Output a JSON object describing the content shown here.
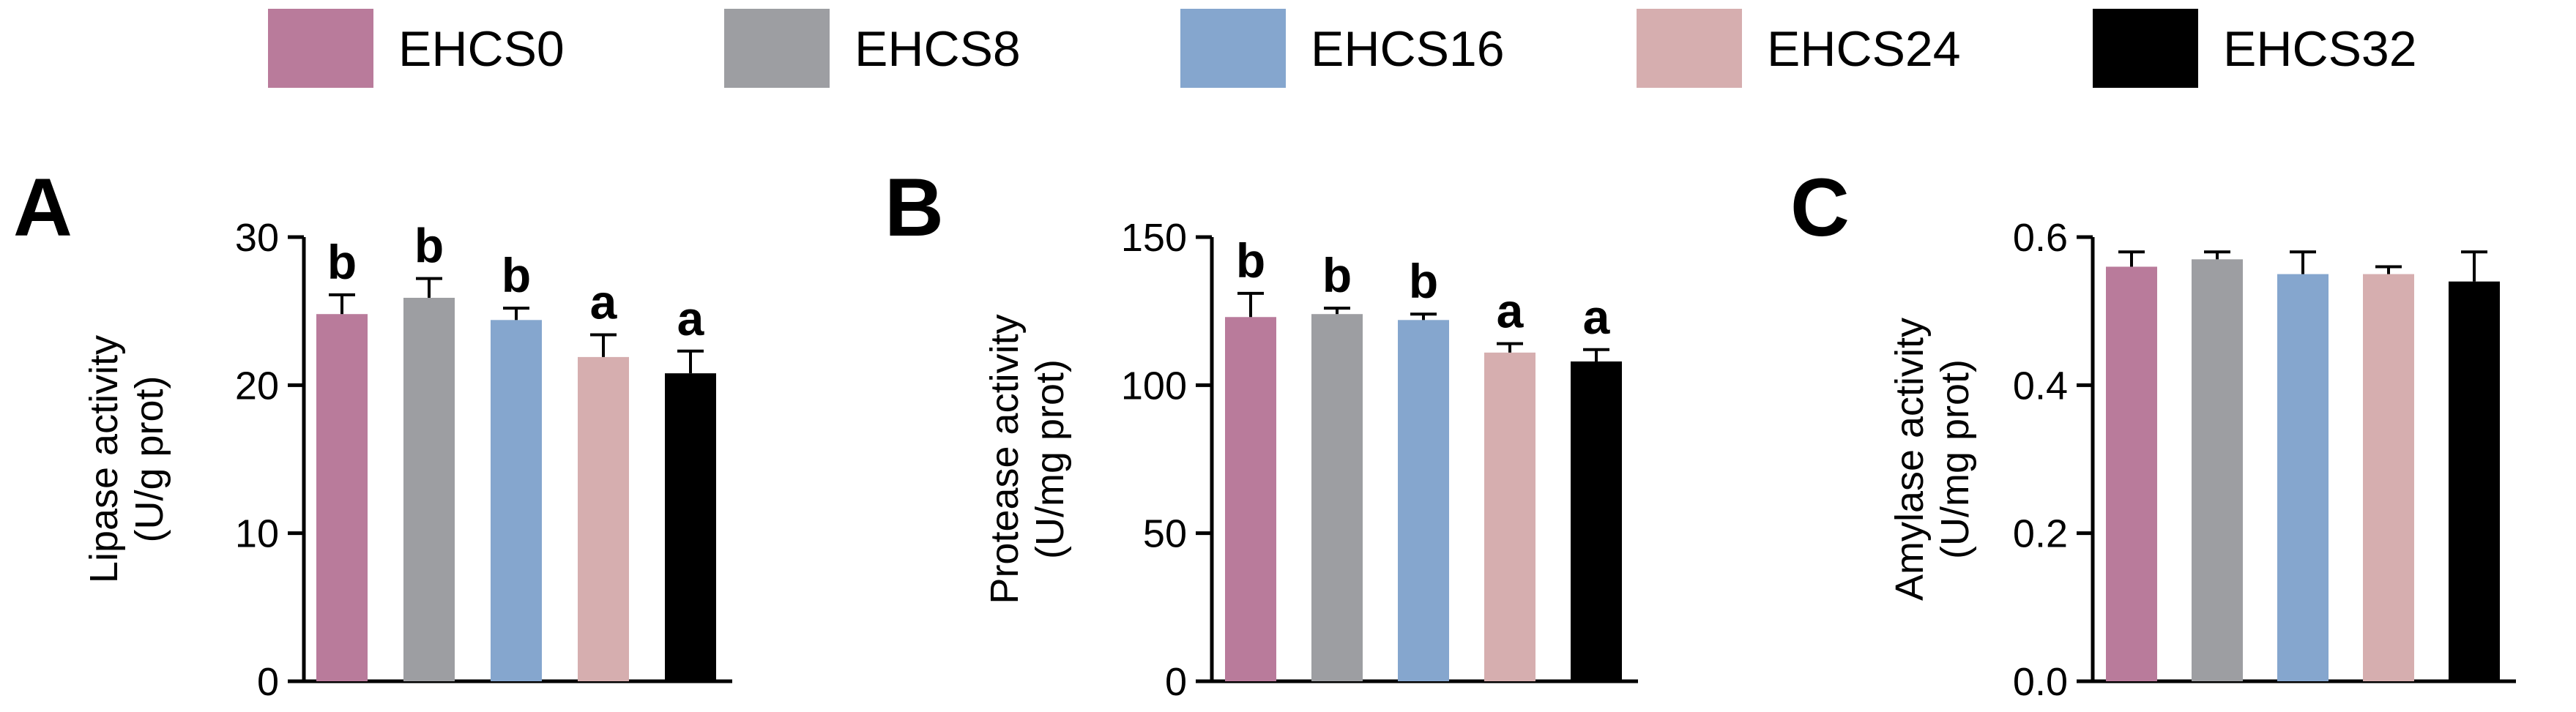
{
  "legend": {
    "items": [
      {
        "label": "EHCS0",
        "color": "#B97B9B"
      },
      {
        "label": "EHCS8",
        "color": "#9D9EA2"
      },
      {
        "label": "EHCS16",
        "color": "#85A6CE"
      },
      {
        "label": "EHCS24",
        "color": "#D6AEAF"
      },
      {
        "label": "EHCS32",
        "color": "#000000"
      }
    ]
  },
  "chart_data": [
    {
      "type": "bar",
      "panel_label": "A",
      "ylabel": "Lipase activity",
      "ylabel_unit": "(U/g prot)",
      "categories": [
        "EHCS0",
        "EHCS8",
        "EHCS16",
        "EHCS24",
        "EHCS32"
      ],
      "values": [
        24.8,
        25.9,
        24.4,
        21.9,
        20.8
      ],
      "errors": [
        1.3,
        1.3,
        0.8,
        1.5,
        1.5
      ],
      "significance": [
        "b",
        "b",
        "b",
        "a",
        "a"
      ],
      "ylim": [
        0,
        30
      ],
      "yticks": [
        0,
        10,
        20,
        30
      ],
      "ytick_labels": [
        "0",
        "10",
        "20",
        "30"
      ],
      "grid": false
    },
    {
      "type": "bar",
      "panel_label": "B",
      "ylabel": "Protease activity",
      "ylabel_unit": "(U/mg prot)",
      "categories": [
        "EHCS0",
        "EHCS8",
        "EHCS16",
        "EHCS24",
        "EHCS32"
      ],
      "values": [
        123,
        124,
        122,
        111,
        108
      ],
      "errors": [
        8,
        2,
        2,
        3,
        4
      ],
      "significance": [
        "b",
        "b",
        "b",
        "a",
        "a"
      ],
      "ylim": [
        0,
        150
      ],
      "yticks": [
        0,
        50,
        100,
        150
      ],
      "ytick_labels": [
        "0",
        "50",
        "100",
        "150"
      ],
      "grid": false
    },
    {
      "type": "bar",
      "panel_label": "C",
      "ylabel": "Amylase activity",
      "ylabel_unit": "(U/mg prot)",
      "categories": [
        "EHCS0",
        "EHCS8",
        "EHCS16",
        "EHCS24",
        "EHCS32"
      ],
      "values": [
        0.56,
        0.57,
        0.55,
        0.55,
        0.54
      ],
      "errors": [
        0.02,
        0.01,
        0.03,
        0.01,
        0.04
      ],
      "significance": [
        "",
        "",
        "",
        "",
        ""
      ],
      "ylim": [
        0,
        0.6
      ],
      "yticks": [
        0,
        0.2,
        0.4,
        0.6
      ],
      "ytick_labels": [
        "0.0",
        "0.2",
        "0.4",
        "0.6"
      ],
      "grid": false
    }
  ]
}
